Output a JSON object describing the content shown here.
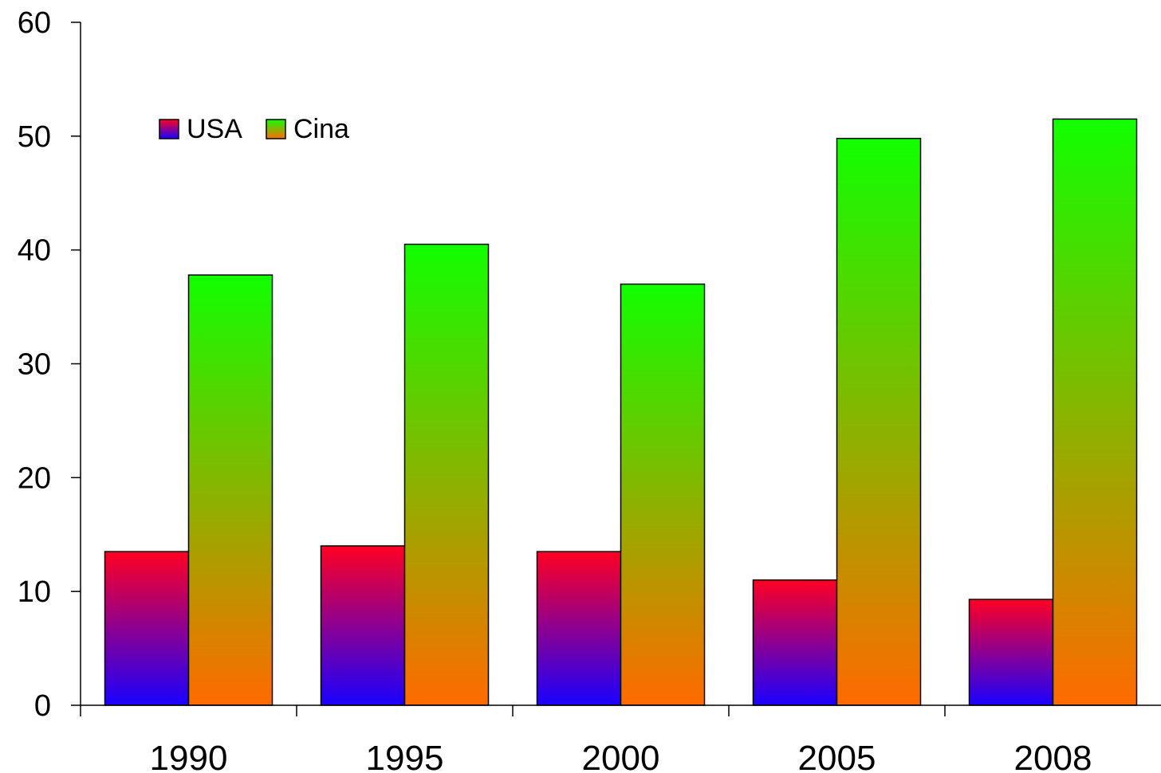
{
  "chart_data": {
    "type": "bar",
    "categories": [
      "1990",
      "1995",
      "2000",
      "2005",
      "2008"
    ],
    "series": [
      {
        "name": "USA",
        "values": [
          13.5,
          14.0,
          13.5,
          11.0,
          9.3
        ],
        "gradient": {
          "top": "#ff0022",
          "bottom": "#1a00ff"
        }
      },
      {
        "name": "Cina",
        "values": [
          37.8,
          40.5,
          37.0,
          49.8,
          51.5
        ],
        "gradient": {
          "top": "#11ff00",
          "bottom": "#ff6a00"
        }
      }
    ],
    "ylim": [
      0,
      60
    ],
    "yticks": [
      0,
      10,
      20,
      30,
      40,
      50,
      60
    ],
    "title": "",
    "xlabel": "",
    "ylabel": "",
    "grid": false,
    "legend_position": "top-left"
  }
}
